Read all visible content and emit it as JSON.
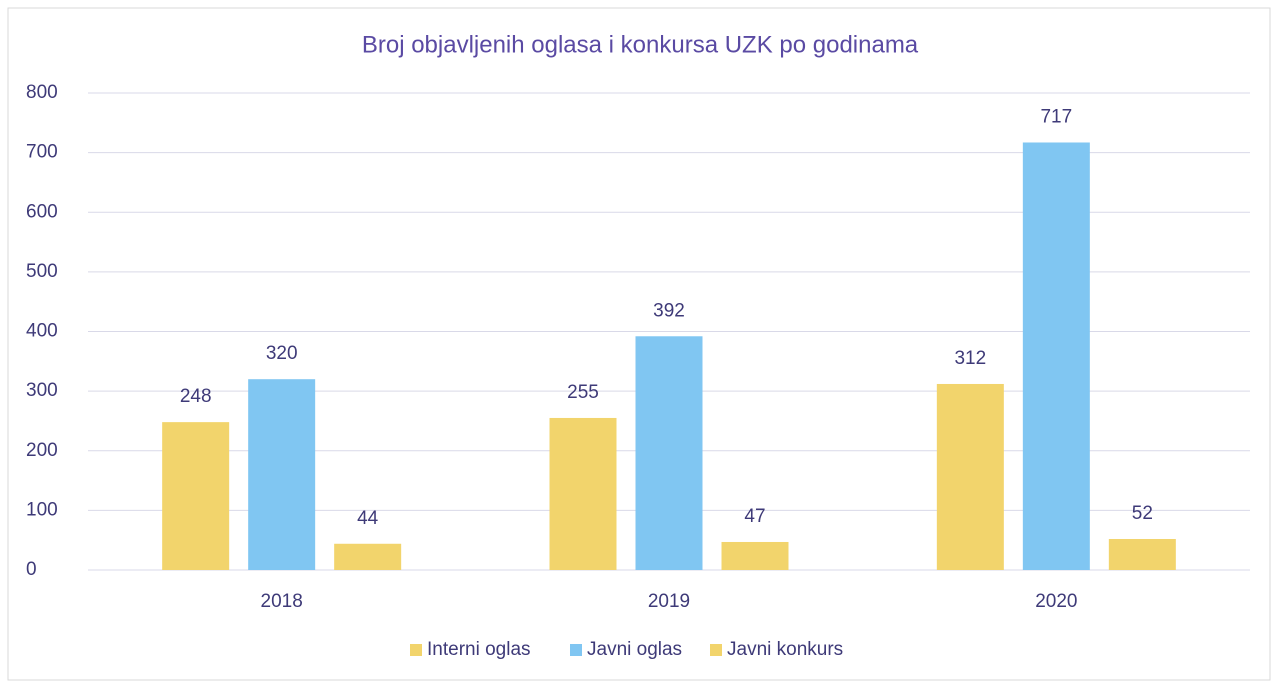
{
  "chart_data": {
    "type": "bar",
    "title": "Broj objavljenih oglasa i konkursa UZK po godinama",
    "categories": [
      "2018",
      "2019",
      "2020"
    ],
    "series": [
      {
        "name": "Interni oglas",
        "color": "#f2d46c",
        "values": [
          248,
          255,
          312
        ]
      },
      {
        "name": "Javni oglas",
        "color": "#80c6f2",
        "values": [
          320,
          392,
          717
        ]
      },
      {
        "name": "Javni konkurs",
        "color": "#f2d46c",
        "values": [
          44,
          47,
          52
        ]
      }
    ],
    "ylim": [
      0,
      800
    ],
    "yticks": [
      0,
      100,
      200,
      300,
      400,
      500,
      600,
      700,
      800
    ],
    "grid": true,
    "legend": "bottom"
  }
}
